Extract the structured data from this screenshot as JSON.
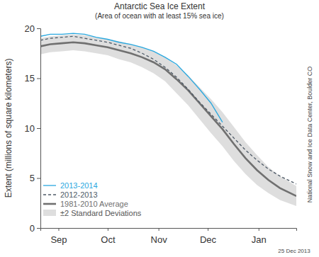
{
  "chart_data": {
    "type": "line",
    "title": "Antarctic Sea Ice Extent",
    "subtitle": "(Area of ocean with at least 15% sea ice)",
    "y_label": "Extent (millions of square kilometers)",
    "annotations": [
      "National Snow and Ice Data Center, Boulder CO",
      "25 Dec 2013"
    ],
    "x": [
      4,
      10,
      17,
      24,
      31,
      38,
      45,
      52,
      59,
      66,
      73,
      80,
      87,
      94,
      101,
      108,
      115,
      122,
      129,
      136,
      143,
      150,
      160
    ],
    "xlim": [
      4,
      160
    ],
    "xticks": [
      {
        "value": 15,
        "label": "Sep"
      },
      {
        "value": 45,
        "label": "Oct"
      },
      {
        "value": 76,
        "label": "Nov"
      },
      {
        "value": 106,
        "label": "Dec"
      },
      {
        "value": 137,
        "label": "Jan"
      }
    ],
    "ylim": [
      0,
      20
    ],
    "yticks": [
      0,
      5,
      10,
      15,
      20
    ],
    "grid": false,
    "legend": "lower left",
    "series": [
      {
        "name": "2013-2014",
        "color": "#29a8df",
        "line_style": "solid",
        "type": "line",
        "values": [
          19.2,
          19.4,
          19.4,
          19.5,
          19.4,
          19.1,
          18.9,
          18.6,
          18.4,
          18.1,
          17.7,
          17.1,
          16.4,
          15.2,
          13.9,
          12.5,
          10.6,
          null,
          null,
          null,
          null,
          null,
          null
        ]
      },
      {
        "name": "2012-2013",
        "color": "#4d5966",
        "line_style": "dashed",
        "type": "line",
        "values": [
          18.8,
          19.0,
          19.1,
          19.2,
          19.0,
          18.8,
          18.6,
          18.3,
          18.0,
          17.5,
          16.9,
          16.1,
          15.1,
          13.9,
          12.6,
          11.4,
          10.2,
          9.0,
          7.8,
          6.8,
          5.9,
          5.2,
          4.4
        ]
      },
      {
        "name": "1981-2010 Average",
        "color": "#707070",
        "line_style": "solid",
        "type": "line",
        "values": [
          18.2,
          18.4,
          18.5,
          18.6,
          18.5,
          18.3,
          18.1,
          17.8,
          17.5,
          17.1,
          16.6,
          15.9,
          14.9,
          13.8,
          12.5,
          11.2,
          9.9,
          8.4,
          7.0,
          5.8,
          4.8,
          4.0,
          3.2
        ]
      },
      {
        "name": "±2 Standard Deviations",
        "color": "#dedede",
        "type": "area",
        "high": [
          19.0,
          19.2,
          19.3,
          19.4,
          19.3,
          19.1,
          18.9,
          18.7,
          18.4,
          18.1,
          17.7,
          17.1,
          16.3,
          15.3,
          14.1,
          12.9,
          11.6,
          10.1,
          8.6,
          7.3,
          6.1,
          5.2,
          4.2
        ],
        "low": [
          17.4,
          17.6,
          17.7,
          17.8,
          17.7,
          17.5,
          17.3,
          16.9,
          16.6,
          16.1,
          15.5,
          14.7,
          13.5,
          12.3,
          10.9,
          9.5,
          8.2,
          6.7,
          5.4,
          4.3,
          3.5,
          2.8,
          2.2
        ]
      }
    ]
  }
}
